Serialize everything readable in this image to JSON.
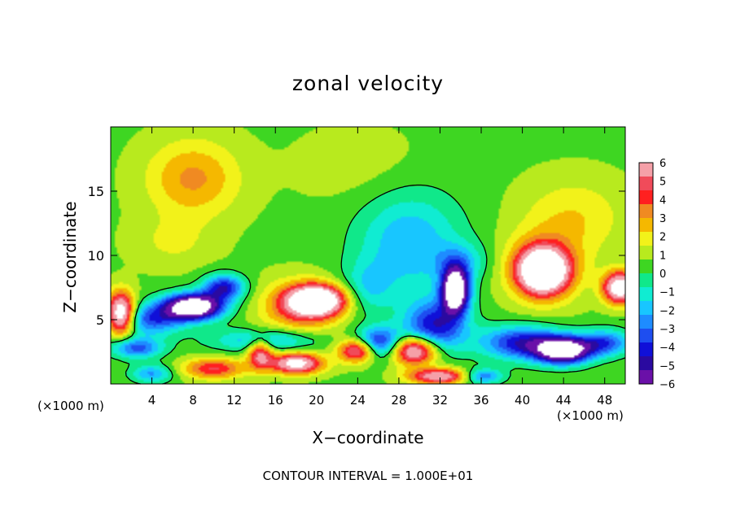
{
  "chart_data": {
    "type": "heatmap",
    "title": "zonal velocity",
    "xlabel": "X−coordinate",
    "ylabel": "Z−coordinate",
    "x_unit": "(×1000 m)",
    "x_unit_right": "(×1000 m)",
    "xlim": [
      0,
      50
    ],
    "ylim": [
      0,
      20
    ],
    "x_ticks": [
      4,
      8,
      12,
      16,
      20,
      24,
      28,
      32,
      36,
      40,
      44,
      48
    ],
    "y_ticks": [
      5,
      10,
      15
    ],
    "colorbar": {
      "ticks": [
        6,
        5,
        4,
        3,
        2,
        1,
        0,
        -1,
        -2,
        -3,
        -4,
        -5,
        -6
      ],
      "colors": [
        "#f5a0a8",
        "#f04b5a",
        "#ff2020",
        "#f08a22",
        "#f5b800",
        "#f2f21a",
        "#b8ea1e",
        "#3ed622",
        "#10e88a",
        "#10ecd2",
        "#18c6ff",
        "#1e8cff",
        "#1e4ef0",
        "#1010d8",
        "#2a0aa0",
        "#6a10a8"
      ]
    },
    "features": [
      {
        "kind": "positive_max",
        "x": 20,
        "z": 6.5
      },
      {
        "kind": "positive_max",
        "x": 42,
        "z": 8.8
      },
      {
        "kind": "positive_max",
        "x": 49,
        "z": 7.5
      },
      {
        "kind": "positive_max",
        "x": 30,
        "z": 2.8
      },
      {
        "kind": "positive_max",
        "x": 18,
        "z": 1.8
      },
      {
        "kind": "negative_min",
        "x": 8,
        "z": 6.0
      },
      {
        "kind": "negative_min",
        "x": 33.5,
        "z": 7.5
      },
      {
        "kind": "negative_min",
        "x": 44,
        "z": 2.6
      },
      {
        "kind": "negative_min",
        "x": 26,
        "z": 3.0
      },
      {
        "kind": "weak_positive",
        "x": 8,
        "z": 16
      },
      {
        "kind": "weak_negative",
        "x": 29,
        "z": 11
      }
    ]
  },
  "annotation": "CONTOUR INTERVAL = 1.000E+01"
}
